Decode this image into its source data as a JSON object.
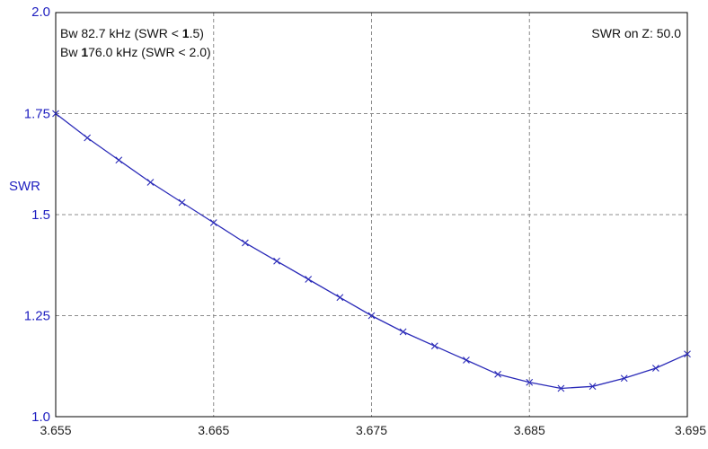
{
  "colors": {
    "curve": "#2a2ab8",
    "axis_text": "#2020c0",
    "grid": "#8c8c8c"
  },
  "annotations": {
    "bw1_prefix": "Bw 82.7 kHz (SWR < ",
    "bw1_bold": "1",
    "bw1_suffix": ".5)",
    "bw2_prefix": "Bw ",
    "bw2_bold": "1",
    "bw2_suffix": "76.0 kHz (SWR < 2.0)",
    "swr_on_z": "SWR on Z: 50.0"
  },
  "chart_data": {
    "type": "line",
    "title": "",
    "xlabel": "",
    "ylabel": "SWR",
    "xlim": [
      3.655,
      3.695
    ],
    "ylim": [
      1.0,
      2.0
    ],
    "x_ticks": [
      "3.655",
      "3.665",
      "3.675",
      "3.685",
      "3.695"
    ],
    "x_tick_values": [
      3.655,
      3.665,
      3.675,
      3.685,
      3.695
    ],
    "y_ticks": [
      "1.0",
      "1.25",
      "1.5",
      "1.75",
      "2.0"
    ],
    "y_tick_values": [
      1.0,
      1.25,
      1.5,
      1.75,
      2.0
    ],
    "grid": true,
    "series": [
      {
        "x": [
          3.655,
          3.657,
          3.659,
          3.661,
          3.663,
          3.665,
          3.667,
          3.669,
          3.671,
          3.673,
          3.675,
          3.677,
          3.679,
          3.681,
          3.683,
          3.685,
          3.687,
          3.689,
          3.691,
          3.693,
          3.695
        ],
        "y": [
          1.75,
          1.69,
          1.635,
          1.58,
          1.53,
          1.48,
          1.43,
          1.385,
          1.34,
          1.295,
          1.25,
          1.21,
          1.175,
          1.14,
          1.105,
          1.085,
          1.07,
          1.075,
          1.095,
          1.12,
          1.155
        ]
      }
    ]
  }
}
